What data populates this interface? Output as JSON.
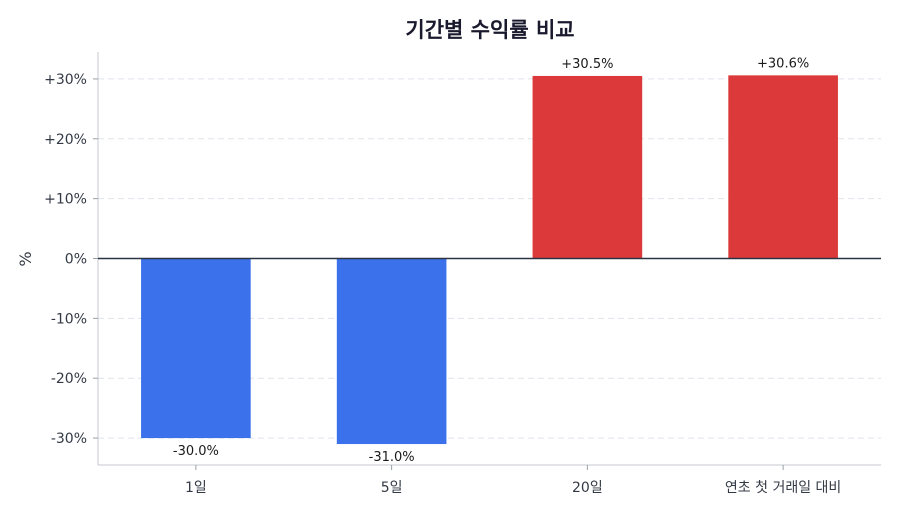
{
  "chart_data": {
    "type": "bar",
    "title": "기간별 수익률 비교",
    "xlabel": "",
    "ylabel": "%",
    "categories": [
      "1일",
      "5일",
      "20일",
      "연초 첫 거래일 대비"
    ],
    "values": [
      -30.0,
      -31.0,
      30.5,
      30.6
    ],
    "data_labels": [
      "-30.0%",
      "-31.0%",
      "+30.5%",
      "+30.6%"
    ],
    "ylim": [
      -34.5,
      34.5
    ],
    "yticks": [
      30,
      20,
      10,
      0,
      -10,
      -20,
      -30
    ],
    "ytick_labels": [
      "+30%",
      "+20%",
      "+10%",
      "0%",
      "-10%",
      "-20%",
      "-30%"
    ],
    "grid": true,
    "colors": {
      "positive": "#dc3a3a",
      "negative": "#3b72ec",
      "zero_line": "#2b3442"
    }
  }
}
